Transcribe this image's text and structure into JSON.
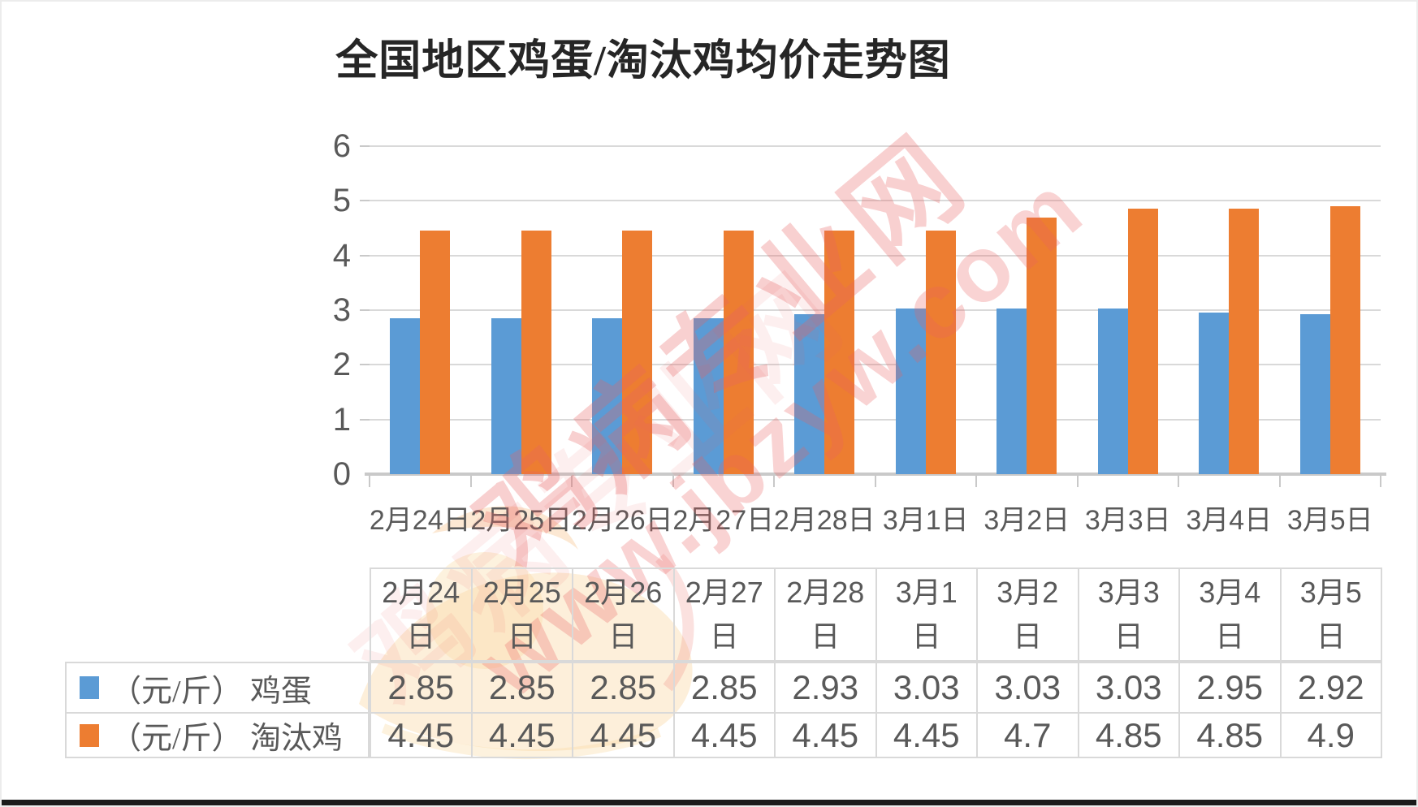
{
  "page": {
    "title": "全国地区鸡蛋/淘汰鸡均价走势图",
    "watermark": {
      "line1": "鸡病专业网",
      "line2": "www.jbzyw.com",
      "color": "#e06060"
    }
  },
  "chart_data": {
    "type": "bar",
    "title": "全国地区鸡蛋/淘汰鸡均价走势图",
    "categories": [
      "2月24日",
      "2月25日",
      "2月26日",
      "2月27日",
      "2月28日",
      "3月1日",
      "3月2日",
      "3月3日",
      "3月4日",
      "3月5日"
    ],
    "series": [
      {
        "name": "（元/斤） 鸡蛋",
        "color": "#5B9BD5",
        "values": [
          2.85,
          2.85,
          2.85,
          2.85,
          2.93,
          3.03,
          3.03,
          3.03,
          2.95,
          2.92
        ]
      },
      {
        "name": "（元/斤） 淘汰鸡",
        "color": "#ED7D31",
        "values": [
          4.45,
          4.45,
          4.45,
          4.45,
          4.45,
          4.45,
          4.7,
          4.85,
          4.85,
          4.9
        ]
      }
    ],
    "xlabel": "",
    "ylabel": "",
    "ylim": [
      0,
      6
    ],
    "ytick_step": 1,
    "yticks": [
      0,
      1,
      2,
      3,
      4,
      5,
      6
    ],
    "grid": true,
    "gridline_color": "#D9D9D9",
    "legend_position": "table-left",
    "unit": "元/斤"
  }
}
